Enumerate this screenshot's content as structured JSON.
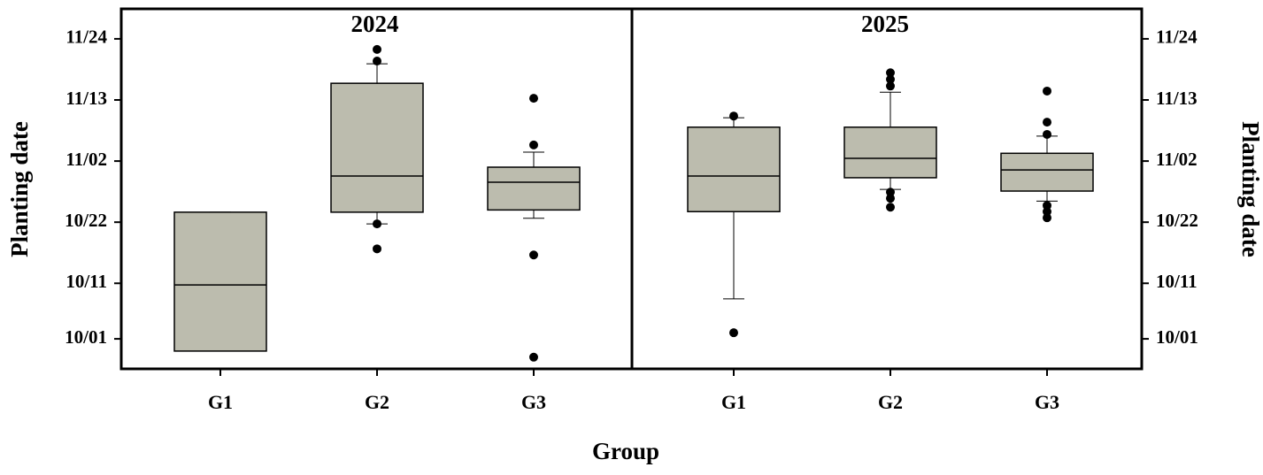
{
  "chart_data": [
    {
      "type": "box",
      "title": "2024",
      "ylabel": "Planting date",
      "xlabel": "Group",
      "yaxis": "left",
      "categories": [
        "G1",
        "G2",
        "G3"
      ],
      "color": "#bcbcae",
      "ylim": [
        -5.4,
        59.4
      ],
      "yticks": [
        {
          "value": 0,
          "label": "10/01"
        },
        {
          "value": 10,
          "label": "10/11"
        },
        {
          "value": 21,
          "label": "10/22"
        },
        {
          "value": 32,
          "label": "11/02"
        },
        {
          "value": 43,
          "label": "11/13"
        },
        {
          "value": 54,
          "label": "11/24"
        }
      ],
      "boxes": [
        {
          "whisker_low": -2.2,
          "q1": -2.2,
          "median": 9.7,
          "q3": 22.8,
          "whisker_high": 22.8,
          "outliers": []
        },
        {
          "whisker_low": 20.7,
          "q1": 22.8,
          "median": 29.3,
          "q3": 46.0,
          "whisker_high": 49.5,
          "outliers": [
            52.1,
            50.0,
            20.7,
            16.2
          ]
        },
        {
          "whisker_low": 21.7,
          "q1": 23.2,
          "median": 28.2,
          "q3": 30.9,
          "whisker_high": 33.6,
          "outliers": [
            43.3,
            34.9,
            15.1,
            -3.3
          ]
        }
      ]
    },
    {
      "type": "box",
      "title": "2025",
      "ylabel": "Planting date",
      "yaxis": "right",
      "categories": [
        "G1",
        "G2",
        "G3"
      ],
      "color": "#bcbcae",
      "ylim": [
        -5.4,
        59.4
      ],
      "yticks": [
        {
          "value": 0,
          "label": "10/01"
        },
        {
          "value": 10,
          "label": "10/11"
        },
        {
          "value": 21,
          "label": "10/22"
        },
        {
          "value": 32,
          "label": "11/02"
        },
        {
          "value": 43,
          "label": "11/13"
        },
        {
          "value": 54,
          "label": "11/24"
        }
      ],
      "boxes": [
        {
          "whisker_low": 7.2,
          "q1": 22.9,
          "median": 29.3,
          "q3": 38.1,
          "whisker_high": 39.8,
          "outliers": [
            40.1,
            1.1
          ]
        },
        {
          "whisker_low": 26.9,
          "q1": 29.0,
          "median": 32.5,
          "q3": 38.1,
          "whisker_high": 44.4,
          "outliers": [
            47.9,
            46.7,
            45.5,
            26.4,
            25.3,
            23.7
          ]
        },
        {
          "whisker_low": 24.8,
          "q1": 26.6,
          "median": 30.4,
          "q3": 33.4,
          "whisker_high": 36.5,
          "outliers": [
            44.6,
            39.0,
            36.8,
            24.0,
            22.9,
            21.8
          ]
        }
      ]
    }
  ]
}
